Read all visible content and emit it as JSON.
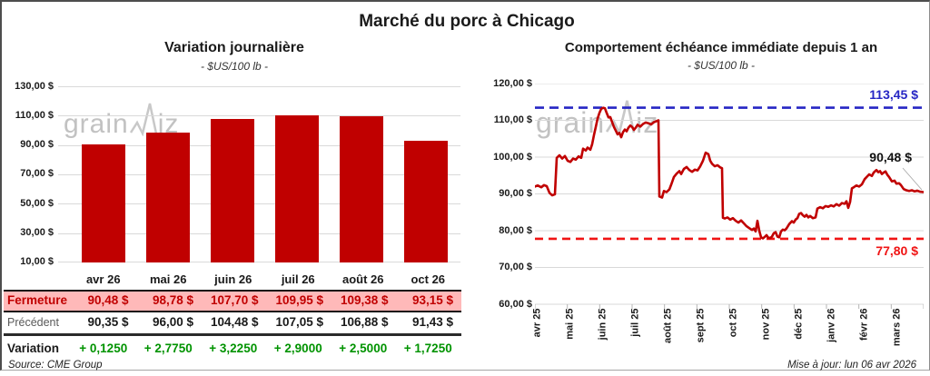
{
  "page_title": "Marché du porc à Chicago",
  "watermark": {
    "part1": "grain",
    "part2": "iz"
  },
  "colors": {
    "series_red": "#C00000",
    "pink_row": "#FFB9B9",
    "high_blue": "#2626C4",
    "low_red": "#F01414",
    "variation_green": "#009300",
    "watermark_gray": "#c2c2c2",
    "grid_gray": "#d9d9d9"
  },
  "chart_data": [
    {
      "type": "bar",
      "title": "Variation journalière",
      "subtitle": "- $US/100 lb -",
      "categories": [
        "avr 26",
        "mai 26",
        "juin 26",
        "juil 26",
        "août 26",
        "oct 26"
      ],
      "values": [
        90.48,
        98.78,
        107.7,
        109.95,
        109.38,
        93.15
      ],
      "ylim": [
        10,
        130
      ],
      "ytick_labels": [
        "130,00 $",
        "110,00 $",
        "90,00 $",
        "70,00 $",
        "50,00 $",
        "30,00 $",
        "10,00 $"
      ],
      "ylabel": "$US/100 lb",
      "grid": true,
      "bar_color": "#C00000"
    },
    {
      "type": "line",
      "title": "Comportement échéance immédiate depuis 1 an",
      "subtitle": "- $US/100 lb -",
      "x_ticks": [
        "avr 25",
        "mai 25",
        "juin 25",
        "juil 25",
        "août 25",
        "sept 25",
        "oct 25",
        "nov 25",
        "déc 25",
        "janv 26",
        "févr 26",
        "mars 26"
      ],
      "ylim": [
        60,
        120
      ],
      "ytick_labels": [
        "120,00 $",
        "110,00 $",
        "100,00 $",
        "90,00 $",
        "80,00 $",
        "70,00 $",
        "60,00 $"
      ],
      "ylabel": "$US/100 lb",
      "grid": true,
      "line_color": "#C00000",
      "high_line": {
        "value": 113.45,
        "label": "113,45 $",
        "color": "#2626C4"
      },
      "low_line": {
        "value": 77.8,
        "label": "77,80 $",
        "color": "#F01414"
      },
      "last_value": 90.48,
      "last_label": "90,48 $",
      "x_domain": [
        0,
        428
      ],
      "points": [
        [
          0,
          92
        ],
        [
          3,
          92.3
        ],
        [
          7,
          91.8
        ],
        [
          10,
          92.4
        ],
        [
          13,
          92.1
        ],
        [
          16,
          90.3
        ],
        [
          19,
          89.6
        ],
        [
          22,
          89.9
        ],
        [
          24,
          99.8
        ],
        [
          27,
          100.5
        ],
        [
          30,
          99.6
        ],
        [
          33,
          100.3
        ],
        [
          36,
          99
        ],
        [
          39,
          98.7
        ],
        [
          42,
          99.6
        ],
        [
          45,
          99.3
        ],
        [
          48,
          100.2
        ],
        [
          51,
          99.8
        ],
        [
          53,
          102.3
        ],
        [
          56,
          101.8
        ],
        [
          58,
          102.6
        ],
        [
          61,
          102
        ],
        [
          63,
          103.5
        ],
        [
          65,
          106
        ],
        [
          67,
          108.2
        ],
        [
          69,
          110.5
        ],
        [
          71,
          112
        ],
        [
          73,
          113.1
        ],
        [
          75,
          113.4
        ],
        [
          77,
          113.3
        ],
        [
          79,
          112
        ],
        [
          81,
          110.8
        ],
        [
          83,
          110.9
        ],
        [
          85,
          109.5
        ],
        [
          87,
          108.2
        ],
        [
          89,
          107.2
        ],
        [
          91,
          106.2
        ],
        [
          93,
          106.6
        ],
        [
          95,
          105.4
        ],
        [
          97,
          106.8
        ],
        [
          99,
          107.5
        ],
        [
          101,
          107
        ],
        [
          103,
          108
        ],
        [
          105,
          108.6
        ],
        [
          107,
          108.2
        ],
        [
          109,
          107.4
        ],
        [
          111,
          108
        ],
        [
          113,
          108.8
        ],
        [
          116,
          108.3
        ],
        [
          119,
          109
        ],
        [
          122,
          109.4
        ],
        [
          125,
          109.2
        ],
        [
          128,
          108.9
        ],
        [
          131,
          109.5
        ],
        [
          134,
          109.8
        ],
        [
          136,
          110
        ],
        [
          137,
          89.3
        ],
        [
          140,
          89
        ],
        [
          142,
          90.8
        ],
        [
          145,
          90.5
        ],
        [
          148,
          91.2
        ],
        [
          150,
          92.5
        ],
        [
          153,
          94.6
        ],
        [
          156,
          95.5
        ],
        [
          159,
          96.2
        ],
        [
          161,
          95.4
        ],
        [
          164,
          96.8
        ],
        [
          167,
          97.3
        ],
        [
          170,
          96.5
        ],
        [
          173,
          96
        ],
        [
          176,
          96.6
        ],
        [
          179,
          96.4
        ],
        [
          182,
          97.5
        ],
        [
          185,
          99
        ],
        [
          188,
          101.2
        ],
        [
          191,
          100.8
        ],
        [
          193,
          99
        ],
        [
          195,
          98.2
        ],
        [
          198,
          97.5
        ],
        [
          201,
          97.8
        ],
        [
          204,
          97.2
        ],
        [
          206,
          97
        ],
        [
          207,
          83.5
        ],
        [
          209,
          83.3
        ],
        [
          212,
          83.6
        ],
        [
          215,
          83
        ],
        [
          218,
          83.4
        ],
        [
          221,
          82.7
        ],
        [
          224,
          82.2
        ],
        [
          227,
          82.8
        ],
        [
          230,
          82
        ],
        [
          233,
          81.2
        ],
        [
          236,
          80.7
        ],
        [
          239,
          80.2
        ],
        [
          241,
          80.6
        ],
        [
          243,
          79.8
        ],
        [
          245,
          82.7
        ],
        [
          247,
          80
        ],
        [
          249,
          78.2
        ],
        [
          251,
          77.9
        ],
        [
          253,
          78.3
        ],
        [
          255,
          78.8
        ],
        [
          257,
          78.1
        ],
        [
          259,
          78
        ],
        [
          261,
          78.4
        ],
        [
          263,
          79.3
        ],
        [
          265,
          79.6
        ],
        [
          267,
          78.4
        ],
        [
          269,
          78.2
        ],
        [
          271,
          79.8
        ],
        [
          273,
          80.3
        ],
        [
          275,
          80.1
        ],
        [
          277,
          80.6
        ],
        [
          280,
          81.8
        ],
        [
          283,
          82.6
        ],
        [
          285,
          82.2
        ],
        [
          287,
          83
        ],
        [
          289,
          83.4
        ],
        [
          291,
          84.6
        ],
        [
          293,
          84.8
        ],
        [
          295,
          84.2
        ],
        [
          297,
          83.8
        ],
        [
          299,
          84.3
        ],
        [
          301,
          83.6
        ],
        [
          303,
          84
        ],
        [
          306,
          83.4
        ],
        [
          309,
          83.6
        ],
        [
          311,
          86
        ],
        [
          314,
          86.4
        ],
        [
          317,
          86.1
        ],
        [
          320,
          86.7
        ],
        [
          323,
          86.5
        ],
        [
          326,
          86.9
        ],
        [
          329,
          86.6
        ],
        [
          332,
          87.2
        ],
        [
          335,
          86.8
        ],
        [
          338,
          87.5
        ],
        [
          341,
          87.3
        ],
        [
          343,
          88
        ],
        [
          345,
          86.2
        ],
        [
          347,
          87.8
        ],
        [
          349,
          91.5
        ],
        [
          351,
          91.8
        ],
        [
          354,
          92.3
        ],
        [
          357,
          92
        ],
        [
          360,
          92.6
        ],
        [
          363,
          94
        ],
        [
          366,
          94.8
        ],
        [
          368,
          95.3
        ],
        [
          371,
          94.9
        ],
        [
          373,
          95.8
        ],
        [
          376,
          96.5
        ],
        [
          378,
          95.9
        ],
        [
          380,
          96.2
        ],
        [
          382,
          95.4
        ],
        [
          384,
          95.8
        ],
        [
          386,
          96.1
        ],
        [
          388,
          95.2
        ],
        [
          390,
          94.6
        ],
        [
          393,
          93.4
        ],
        [
          396,
          93.6
        ],
        [
          398,
          92.8
        ],
        [
          401,
          92.9
        ],
        [
          403,
          92.4
        ],
        [
          406,
          91.3
        ],
        [
          409,
          91
        ],
        [
          412,
          90.8
        ],
        [
          415,
          91
        ],
        [
          418,
          90.7
        ],
        [
          421,
          90.9
        ],
        [
          424,
          90.6
        ],
        [
          428,
          90.5
        ]
      ]
    }
  ],
  "table": {
    "rows": [
      {
        "key": "fermeture",
        "label": "Fermeture",
        "values": [
          "90,48 $",
          "98,78 $",
          "107,70 $",
          "109,95 $",
          "109,38 $",
          "93,15 $"
        ]
      },
      {
        "key": "precedent",
        "label": "Précédent",
        "values": [
          "90,35 $",
          "96,00 $",
          "104,48 $",
          "107,05 $",
          "106,88 $",
          "91,43 $"
        ]
      },
      {
        "key": "variation",
        "label": "Variation",
        "values": [
          "+ 0,1250",
          "+ 2,7750",
          "+ 3,2250",
          "+ 2,9000",
          "+ 2,5000",
          "+ 1,7250"
        ]
      }
    ],
    "source": "Source: CME Group"
  },
  "footer": {
    "updated": "Mise à jour: lun 06 avr 2026"
  }
}
